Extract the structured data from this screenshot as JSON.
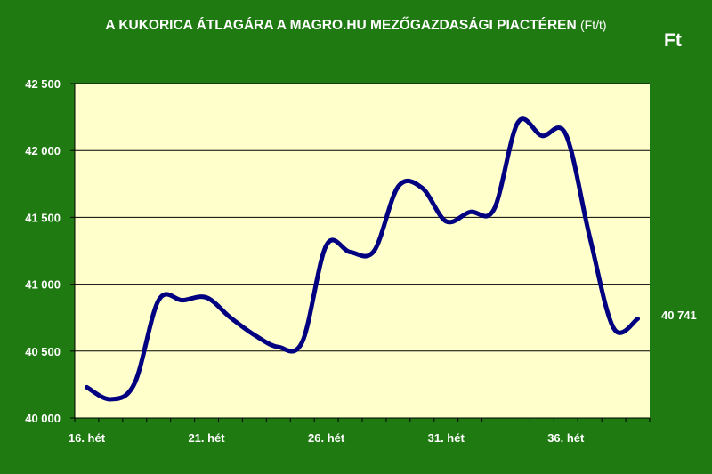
{
  "chart_data": {
    "type": "line",
    "title": "A KUKORICA ÁTLAGÁRA A MAGRO.HU MEZŐGAZDASÁGI PIACTÉREN",
    "title_unit": "(Ft/t)",
    "ylabel": "Ft",
    "ylim": [
      40000,
      42500
    ],
    "yticks": [
      40000,
      40500,
      41000,
      41500,
      42000,
      42500
    ],
    "ytick_labels": [
      "40 000",
      "40 500",
      "41 000",
      "41 500",
      "42 000",
      "42 500"
    ],
    "xticks": [
      16,
      21,
      26,
      31,
      36
    ],
    "xtick_labels": [
      "16. hét",
      "21. hét",
      "26. hét",
      "31. hét",
      "36. hét"
    ],
    "x_range": [
      15.5,
      39.5
    ],
    "grid": "horizontal",
    "legend": "none",
    "last_value_label": "40 741",
    "series": [
      {
        "x": [
          16,
          17,
          18,
          19,
          20,
          21,
          22,
          23,
          24,
          25,
          26,
          27,
          28,
          29,
          30,
          31,
          32,
          33,
          34,
          35,
          36,
          37,
          38,
          39
        ],
        "values": [
          40230,
          40140,
          40260,
          40880,
          40880,
          40900,
          40750,
          40620,
          40530,
          40570,
          41290,
          41240,
          41250,
          41730,
          41720,
          41470,
          41540,
          41560,
          42210,
          42110,
          42120,
          41350,
          40670,
          40741
        ]
      }
    ],
    "colors": {
      "background": "#1f7a12",
      "plot_area": "#ffffcc",
      "line": "#000080",
      "grid": "#000000",
      "text": "#ffffff"
    }
  }
}
